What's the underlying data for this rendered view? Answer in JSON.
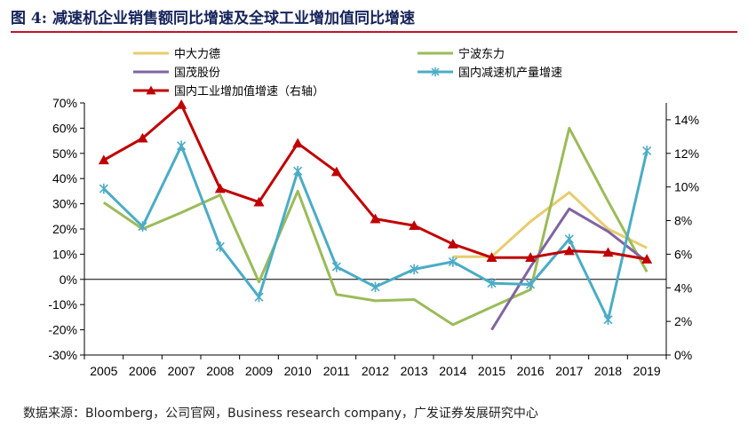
{
  "figure_title": "图 4: 减速机企业销售额同比增速及全球工业增加值同比增速",
  "source": "数据来源：Bloomberg，公司官网，Business research company，广发证券发展研究中心",
  "chart_data": {
    "type": "line",
    "title": "",
    "xlabel": "",
    "ylabel": "",
    "categories": [
      "2005",
      "2006",
      "2007",
      "2008",
      "2009",
      "2010",
      "2011",
      "2012",
      "2013",
      "2014",
      "2015",
      "2016",
      "2017",
      "2018",
      "2019"
    ],
    "y_left": {
      "min": -30,
      "max": 70,
      "step": 10,
      "format": "percent",
      "ticks": [
        "-30%",
        "-20%",
        "-10%",
        "0%",
        "10%",
        "20%",
        "30%",
        "40%",
        "50%",
        "60%",
        "70%"
      ]
    },
    "y_right": {
      "min": 0,
      "max": 15,
      "step": 2,
      "format": "percent",
      "ticks": [
        "0%",
        "2%",
        "4%",
        "6%",
        "8%",
        "10%",
        "12%",
        "14%"
      ]
    },
    "legend_position": "top",
    "grid": false,
    "series": [
      {
        "name": "中大力德",
        "color": "#e8cc6e",
        "axis": "left",
        "marker": "none",
        "values": [
          null,
          null,
          null,
          null,
          null,
          null,
          null,
          null,
          null,
          9,
          9,
          23,
          34.5,
          20,
          12.5
        ]
      },
      {
        "name": "宁波东力",
        "color": "#9bbb59",
        "axis": "left",
        "marker": "none",
        "values": [
          30.5,
          20,
          26.5,
          33.5,
          -1,
          35,
          -6,
          -8.5,
          -8,
          -18,
          -11,
          -4,
          60,
          31,
          3
        ]
      },
      {
        "name": "国茂股份",
        "color": "#8064a2",
        "axis": "left",
        "marker": "none",
        "values": [
          null,
          null,
          null,
          null,
          null,
          null,
          null,
          null,
          null,
          null,
          -20,
          5,
          28,
          19,
          7
        ]
      },
      {
        "name": "国内减速机产量增速",
        "color": "#4bacc6",
        "axis": "left",
        "marker": "star",
        "values": [
          36,
          21,
          53,
          13,
          -7,
          43,
          5,
          -3,
          4,
          7,
          -1.5,
          -2,
          16,
          -16,
          51
        ]
      },
      {
        "name": "国内工业增加值增速（右轴）",
        "color": "#c00000",
        "axis": "right",
        "marker": "triangle",
        "values": [
          11.6,
          12.9,
          14.9,
          9.9,
          9.1,
          12.6,
          10.9,
          8.1,
          7.7,
          6.6,
          5.8,
          5.8,
          6.2,
          6.1,
          5.7
        ]
      }
    ]
  }
}
